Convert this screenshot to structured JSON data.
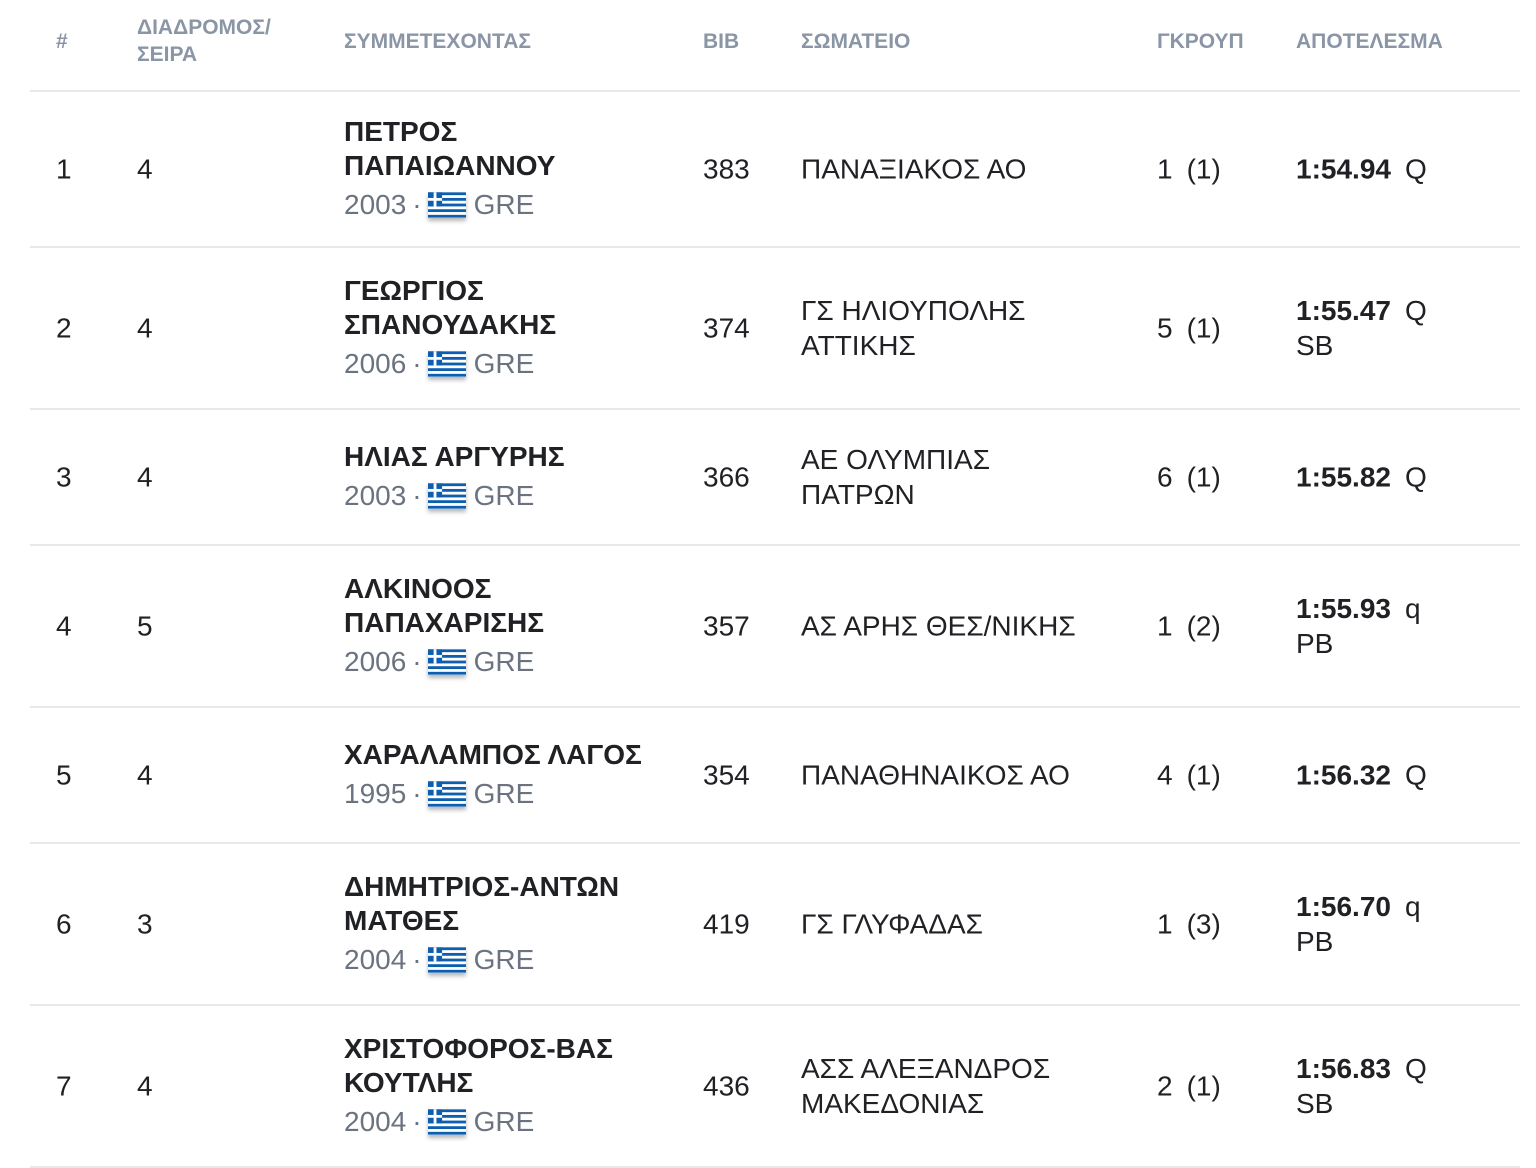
{
  "header": {
    "rank": "#",
    "lane": "ΔΙΑΔΡΟΜΟΣ/\nΣΕΙΡΑ",
    "athlete": "ΣΥΜΜΕΤΕΧΟΝΤΑΣ",
    "bib": "BIB",
    "club": "ΣΩΜΑΤΕΙΟ",
    "group": "ΓΚΡΟΥΠ",
    "result": "ΑΠΟΤΕΛΕΣΜΑ"
  },
  "colors": {
    "header_text": "#8a95a5",
    "divider": "#e6e8eb",
    "flag_blue": "#0d5eaf",
    "secondary_text": "#6b7380"
  },
  "rows": [
    {
      "rank": "1",
      "lane": "4",
      "name": "ΠΕΤΡΟΣ\nΠΑΠΑΙΩΑΝΝΟΥ",
      "year": "2003",
      "sep": "·",
      "country": "GRE",
      "flag_icon": "greece-flag-icon",
      "bib": "383",
      "club": "ΠΑΝΑΞΙΑΚΟΣ ΑΟ",
      "group": "1",
      "group_pos": "(1)",
      "time": "1:54.94",
      "mark": "Q",
      "record": ""
    },
    {
      "rank": "2",
      "lane": "4",
      "name": "ΓΕΩΡΓΙΟΣ\nΣΠΑΝΟΥΔΑΚΗΣ",
      "year": "2006",
      "sep": "·",
      "country": "GRE",
      "flag_icon": "greece-flag-icon",
      "bib": "374",
      "club": "ΓΣ ΗΛΙΟΥΠΟΛΗΣ\nΑΤΤΙΚΗΣ",
      "group": "5",
      "group_pos": "(1)",
      "time": "1:55.47",
      "mark": "Q",
      "record": "SB"
    },
    {
      "rank": "3",
      "lane": "4",
      "name": "ΗΛΙΑΣ ΑΡΓΥΡΗΣ",
      "year": "2003",
      "sep": "·",
      "country": "GRE",
      "flag_icon": "greece-flag-icon",
      "bib": "366",
      "club": "ΑΕ ΟΛΥΜΠΙΑΣ\nΠΑΤΡΩΝ",
      "group": "6",
      "group_pos": "(1)",
      "time": "1:55.82",
      "mark": "Q",
      "record": ""
    },
    {
      "rank": "4",
      "lane": "5",
      "name": "ΑΛΚΙΝΟΟΣ\nΠΑΠΑΧΑΡΙΣΗΣ",
      "year": "2006",
      "sep": "·",
      "country": "GRE",
      "flag_icon": "greece-flag-icon",
      "bib": "357",
      "club": "ΑΣ ΑΡΗΣ ΘΕΣ/ΝΙΚΗΣ",
      "group": "1",
      "group_pos": "(2)",
      "time": "1:55.93",
      "mark": "q",
      "record": "PB"
    },
    {
      "rank": "5",
      "lane": "4",
      "name": "ΧΑΡΑΛΑΜΠΟΣ ΛΑΓΟΣ",
      "year": "1995",
      "sep": "·",
      "country": "GRE",
      "flag_icon": "greece-flag-icon",
      "bib": "354",
      "club": "ΠΑΝΑΘΗΝΑΙΚΟΣ ΑΟ",
      "group": "4",
      "group_pos": "(1)",
      "time": "1:56.32",
      "mark": "Q",
      "record": ""
    },
    {
      "rank": "6",
      "lane": "3",
      "name": "ΔΗΜΗΤΡΙΟΣ-ΑΝΤΩΝ\nΜΑΤΘΕΣ",
      "year": "2004",
      "sep": "·",
      "country": "GRE",
      "flag_icon": "greece-flag-icon",
      "bib": "419",
      "club": "ΓΣ ΓΛΥΦΑΔΑΣ",
      "group": "1",
      "group_pos": "(3)",
      "time": "1:56.70",
      "mark": "q",
      "record": "PB"
    },
    {
      "rank": "7",
      "lane": "4",
      "name": "ΧΡΙΣΤΟΦΟΡΟΣ-ΒΑΣ\nΚΟΥΤΛΗΣ",
      "year": "2004",
      "sep": "·",
      "country": "GRE",
      "flag_icon": "greece-flag-icon",
      "bib": "436",
      "club": "ΑΣΣ ΑΛΕΞΑΝΔΡΟΣ\nΜΑΚΕΔΟΝΙΑΣ",
      "group": "2",
      "group_pos": "(1)",
      "time": "1:56.83",
      "mark": "Q",
      "record": "SB"
    }
  ]
}
